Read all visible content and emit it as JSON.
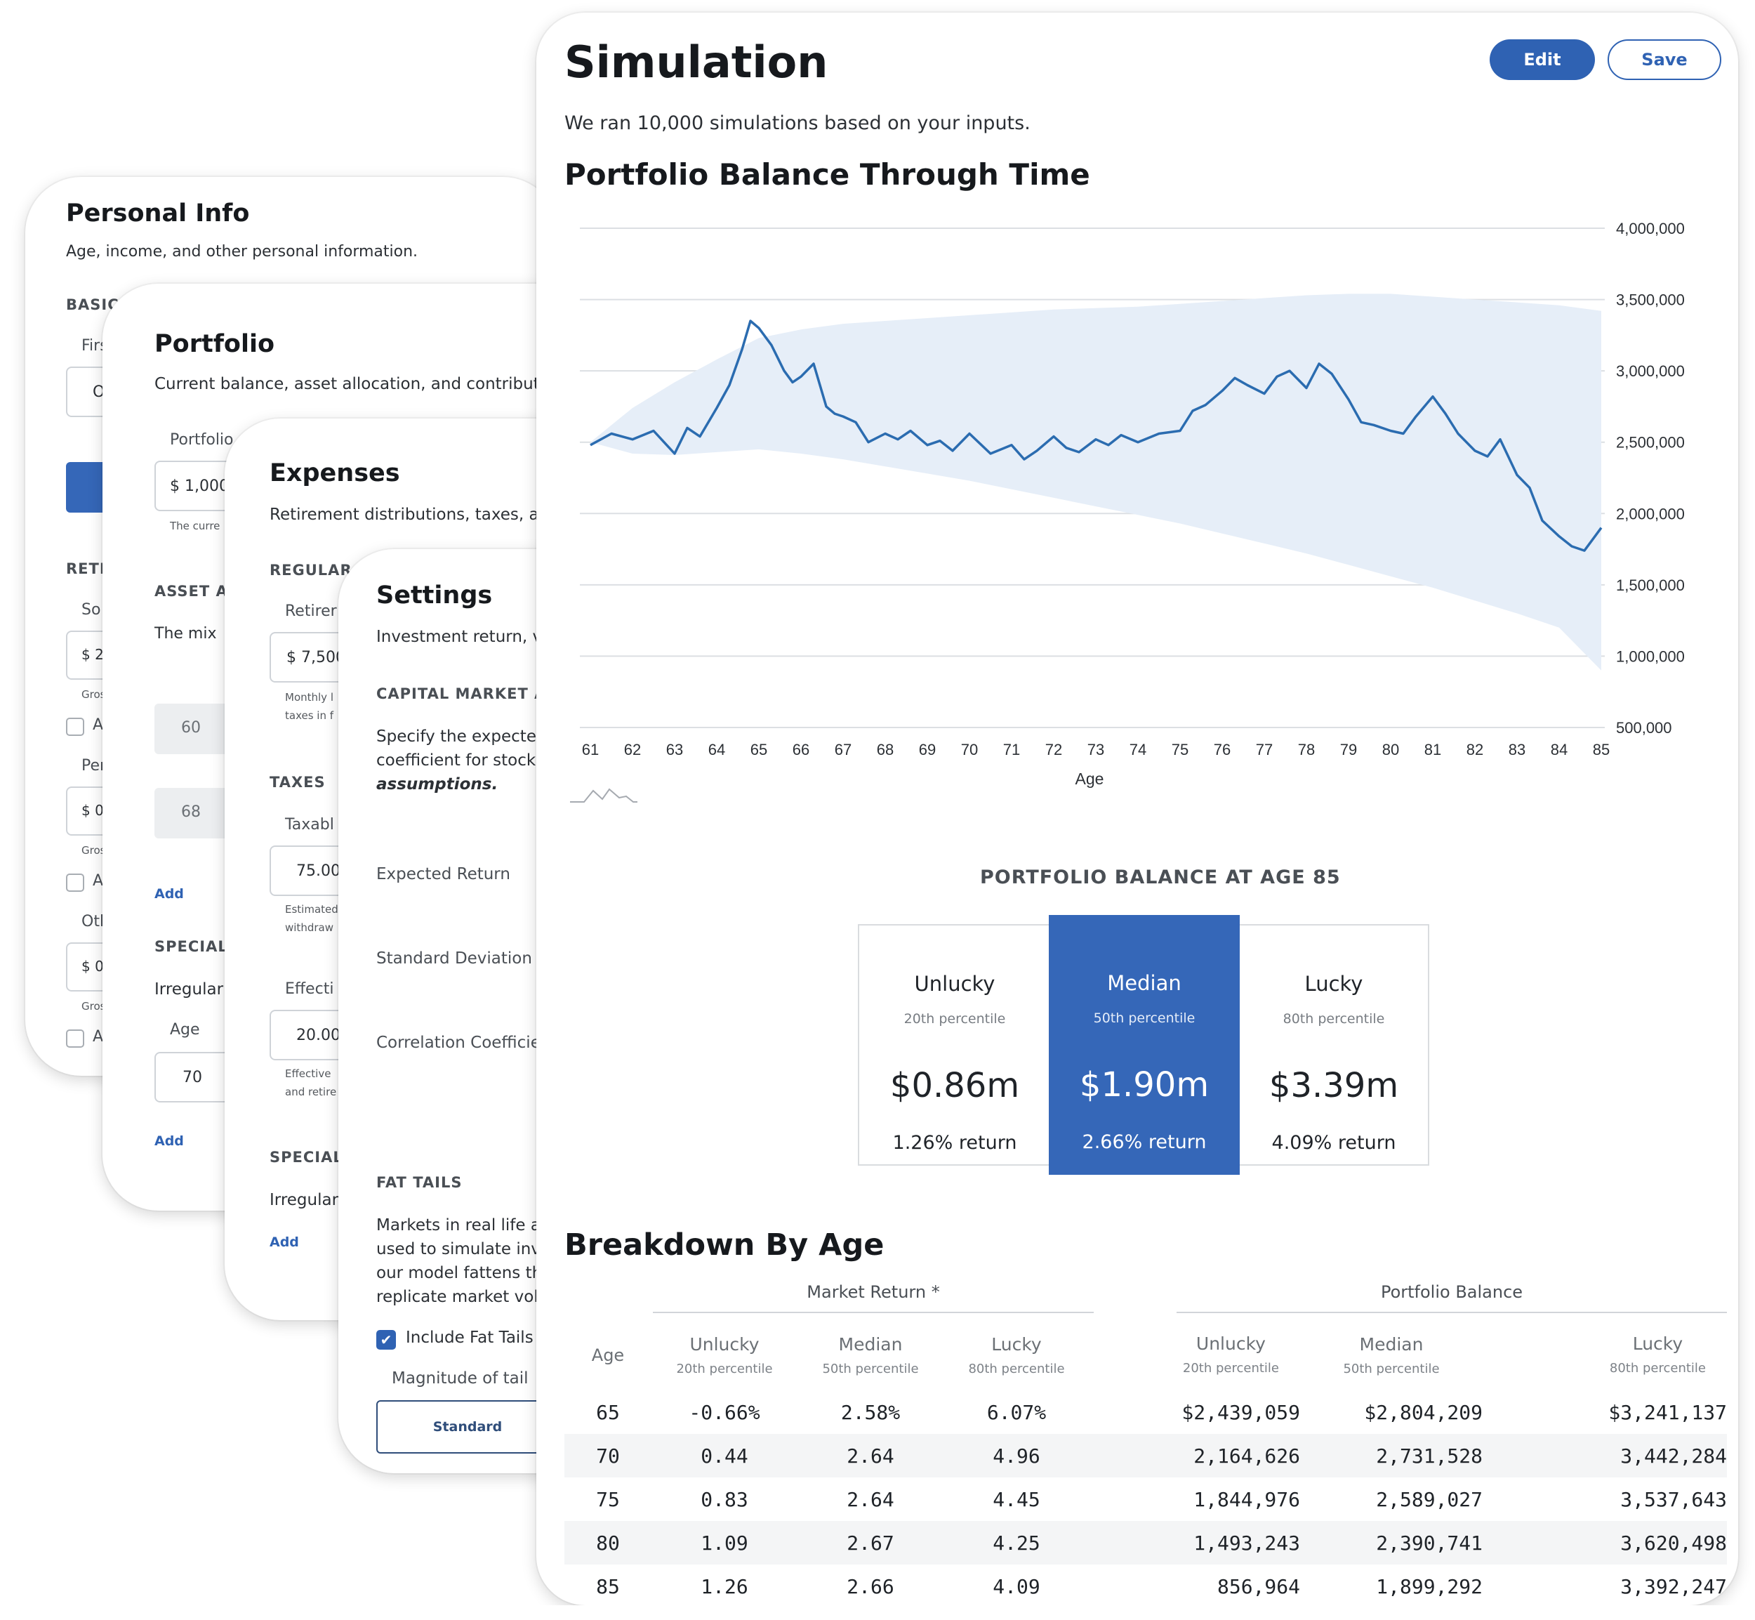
{
  "personal_info": {
    "title": "Personal Info",
    "subtitle": "Age, income, and other personal information.",
    "section_basic": "BASICS",
    "field_first": "First",
    "input_first": "O",
    "section_retirement": "RETI",
    "so_label": "So",
    "so_input": "$ 2",
    "gross1": "Gros",
    "check1": "A",
    "per_label": "Per",
    "per_input": "$ 0",
    "gross2": "Gros",
    "check2": "A",
    "oth_label": "Oth",
    "oth_input": "$ 0",
    "gross3": "Gros",
    "check3": "A"
  },
  "portfolio": {
    "title": "Portfolio",
    "subtitle": "Current balance, asset allocation, and contribut",
    "balance_label": "Portfolio",
    "balance_input": "$ 1,000",
    "balance_hint": "The curre",
    "section_asset": "ASSET A",
    "asset_text": "The mix",
    "alloc_1": "60",
    "alloc_2": "68",
    "add_1": "Add",
    "section_special": "SPECIAL",
    "irregular": "Irregular",
    "age_label": "Age",
    "age_input": "70",
    "add_2": "Add"
  },
  "expenses": {
    "title": "Expenses",
    "subtitle": "Retirement distributions, taxes, a",
    "section_regular": "REGULAR",
    "retire_label": "Retirer",
    "retire_input": "$ 7,500",
    "retire_hint_1": "Monthly l",
    "retire_hint_2": "taxes in f",
    "section_taxes": "TAXES",
    "taxable_label": "Taxabl",
    "taxable_input": "75.00",
    "taxable_hint_1": "Estimated",
    "taxable_hint_2": "withdraw",
    "effective_label": "Effecti",
    "effective_input": "20.00",
    "effective_hint_1": "Effective",
    "effective_hint_2": "and retire",
    "section_special": "SPECIAL",
    "irregular": "Irregular",
    "add": "Add"
  },
  "settings": {
    "title": "Settings",
    "subtitle": "Investment return, v",
    "section_cma": "CAPITAL MARKET A",
    "cma_text_1": "Specify the expecte",
    "cma_text_2": "coefficient for stock",
    "cma_text_3": "assumptions.",
    "expected_return": "Expected Return",
    "std_dev": "Standard Deviation",
    "correlation": "Correlation Coefficie",
    "section_fat": "FAT TAILS",
    "fat_text_1": "Markets in real life a",
    "fat_text_2": "used to simulate inv",
    "fat_text_3": "our model fattens th",
    "fat_text_4": "replicate market vol",
    "include_fat_tails": "Include Fat Tails",
    "magnitude_label": "Magnitude of tail",
    "standard_button": "Standard"
  },
  "simulation": {
    "title": "Simulation",
    "edit_button": "Edit",
    "save_button": "Save",
    "description": "We ran 10,000 simulations based on your inputs.",
    "chart_title": "Portfolio Balance Through Time",
    "stats_title": "PORTFOLIO BALANCE AT AGE 85",
    "stats": [
      {
        "label": "Unlucky",
        "percentile": "20th percentile",
        "value": "$0.86m",
        "return": "1.26% return"
      },
      {
        "label": "Median",
        "percentile": "50th percentile",
        "value": "$1.90m",
        "return": "2.66% return"
      },
      {
        "label": "Lucky",
        "percentile": "80th percentile",
        "value": "$3.39m",
        "return": "4.09% return"
      }
    ],
    "breakdown_title": "Breakdown By Age",
    "group_market": "Market Return *",
    "group_portfolio": "Portfolio Balance",
    "col_age": "Age",
    "col_unlucky": "Unlucky",
    "col_median": "Median",
    "col_lucky": "Lucky",
    "p20": "20th percentile",
    "p50": "50th percentile",
    "p80": "80th percentile",
    "rows": [
      {
        "age": "65",
        "mu": "-0.66%",
        "mm": "2.58%",
        "ml": "6.07%",
        "pu": "$2,439,059",
        "pm": "$2,804,209",
        "pl": "$3,241,137"
      },
      {
        "age": "70",
        "mu": "0.44",
        "mm": "2.64",
        "ml": "4.96",
        "pu": "2,164,626",
        "pm": "2,731,528",
        "pl": "3,442,284"
      },
      {
        "age": "75",
        "mu": "0.83",
        "mm": "2.64",
        "ml": "4.45",
        "pu": "1,844,976",
        "pm": "2,589,027",
        "pl": "3,537,643"
      },
      {
        "age": "80",
        "mu": "1.09",
        "mm": "2.67",
        "ml": "4.25",
        "pu": "1,493,243",
        "pm": "2,390,741",
        "pl": "3,620,498"
      },
      {
        "age": "85",
        "mu": "1.26",
        "mm": "2.66",
        "ml": "4.09",
        "pu": "856,964",
        "pm": "1,899,292",
        "pl": "3,392,247"
      }
    ]
  },
  "chart_data": {
    "type": "area",
    "title": "Portfolio Balance Through Time",
    "xlabel": "Age",
    "ylabel": "",
    "xlim": [
      61,
      85
    ],
    "ylim": [
      500000,
      4000000
    ],
    "x_ticks": [
      "61",
      "62",
      "63",
      "64",
      "65",
      "66",
      "67",
      "68",
      "69",
      "70",
      "71",
      "72",
      "73",
      "74",
      "75",
      "76",
      "77",
      "78",
      "79",
      "80",
      "81",
      "82",
      "83",
      "84",
      "85"
    ],
    "y_ticks": [
      "4,000,000",
      "3,500,000",
      "3,000,000",
      "2,500,000",
      "2,000,000",
      "1,500,000",
      "1,000,000",
      "500,000"
    ],
    "y_tick_values": [
      4000000,
      3500000,
      3000000,
      2500000,
      2000000,
      1500000,
      1000000,
      500000
    ],
    "grid": true,
    "band_color": "#e6eef8",
    "line_color": "#2b6cb0",
    "band": {
      "x": [
        61,
        62,
        63,
        64,
        65,
        66,
        67,
        68,
        69,
        70,
        71,
        72,
        73,
        74,
        75,
        76,
        77,
        78,
        79,
        80,
        81,
        82,
        83,
        84,
        85
      ],
      "upper": [
        2500000,
        2740000,
        2920000,
        3080000,
        3230000,
        3290000,
        3330000,
        3350000,
        3370000,
        3390000,
        3410000,
        3430000,
        3440000,
        3450000,
        3470000,
        3490000,
        3510000,
        3530000,
        3540000,
        3540000,
        3520000,
        3500000,
        3480000,
        3460000,
        3420000
      ],
      "lower": [
        2500000,
        2420000,
        2410000,
        2430000,
        2450000,
        2420000,
        2380000,
        2330000,
        2280000,
        2230000,
        2170000,
        2110000,
        2050000,
        1990000,
        1930000,
        1860000,
        1790000,
        1720000,
        1640000,
        1560000,
        1480000,
        1390000,
        1300000,
        1200000,
        900000
      ]
    },
    "series": [
      {
        "x": [
          61,
          61.5,
          62,
          62.5,
          63,
          63.3,
          63.6,
          64,
          64.3,
          64.6,
          64.8,
          65,
          65.3,
          65.6,
          65.8,
          66,
          66.3,
          66.6,
          66.8,
          67,
          67.3,
          67.6,
          68,
          68.3,
          68.6,
          69,
          69.3,
          69.6,
          70,
          70.5,
          71,
          71.3,
          71.6,
          72,
          72.3,
          72.6,
          73,
          73.3,
          73.6,
          74,
          74.5,
          75,
          75.3,
          75.6,
          76,
          76.3,
          76.6,
          77,
          77.3,
          77.6,
          78,
          78.3,
          78.6,
          79,
          79.3,
          79.6,
          80,
          80.3,
          80.6,
          81,
          81.3,
          81.6,
          82,
          82.3,
          82.6,
          83,
          83.3,
          83.6,
          84,
          84.3,
          84.6,
          85
        ],
        "y": [
          2480000,
          2560000,
          2520000,
          2580000,
          2420000,
          2600000,
          2540000,
          2740000,
          2900000,
          3150000,
          3350000,
          3300000,
          3180000,
          3000000,
          2920000,
          2960000,
          3050000,
          2750000,
          2700000,
          2680000,
          2640000,
          2500000,
          2560000,
          2520000,
          2580000,
          2480000,
          2510000,
          2440000,
          2560000,
          2420000,
          2480000,
          2380000,
          2440000,
          2540000,
          2460000,
          2430000,
          2520000,
          2480000,
          2550000,
          2500000,
          2560000,
          2580000,
          2720000,
          2760000,
          2860000,
          2950000,
          2900000,
          2840000,
          2960000,
          3000000,
          2880000,
          3050000,
          2980000,
          2800000,
          2640000,
          2620000,
          2580000,
          2560000,
          2680000,
          2820000,
          2700000,
          2560000,
          2440000,
          2400000,
          2520000,
          2270000,
          2180000,
          1950000,
          1840000,
          1770000,
          1740000,
          1900000
        ]
      }
    ]
  }
}
